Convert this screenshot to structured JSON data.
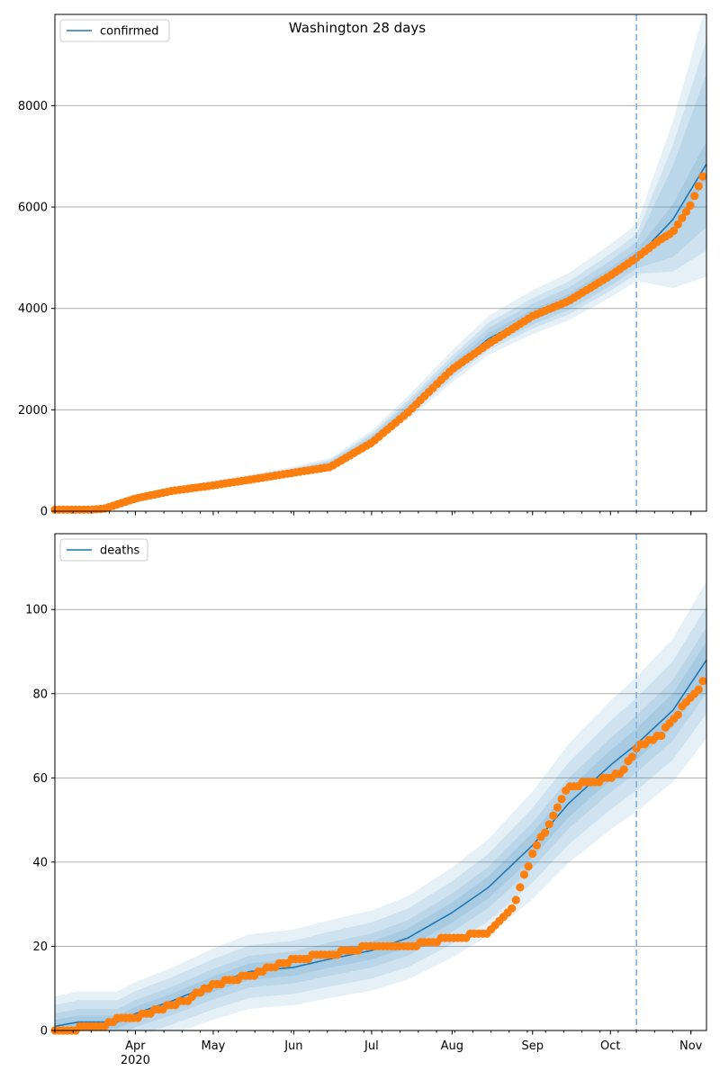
{
  "title": "Washington 28 days",
  "colors": {
    "model": "#1f77b4",
    "observed": "#ff7f0e",
    "band": "#1f77b4",
    "cutoff": "#7fb0dc",
    "grid": "#b0b0b0"
  },
  "x_axis": {
    "start": "2020-03-01",
    "end": "2020-11-07",
    "cutoff": "2020-10-11",
    "months": [
      {
        "label": "Apr",
        "date": "2020-04-01"
      },
      {
        "label": "May",
        "date": "2020-05-01"
      },
      {
        "label": "Jun",
        "date": "2020-06-01"
      },
      {
        "label": "Jul",
        "date": "2020-07-01"
      },
      {
        "label": "Aug",
        "date": "2020-08-01"
      },
      {
        "label": "Sep",
        "date": "2020-09-01"
      },
      {
        "label": "Oct",
        "date": "2020-10-01"
      },
      {
        "label": "Nov",
        "date": "2020-11-01"
      }
    ],
    "year_label": "2020"
  },
  "chart_data": [
    {
      "type": "line",
      "legend": "confirmed",
      "legend_position": "top-left",
      "ylim": [
        0,
        9800
      ],
      "yticks": [
        0,
        2000,
        4000,
        6000,
        8000
      ],
      "ytick_labels": [
        "0",
        "2000",
        "4000",
        "6000",
        "8000"
      ],
      "grid": "horizontal",
      "model_x": [
        "2020-03-01",
        "2020-03-15",
        "2020-04-01",
        "2020-04-15",
        "2020-05-01",
        "2020-05-15",
        "2020-06-01",
        "2020-06-15",
        "2020-07-01",
        "2020-07-15",
        "2020-08-01",
        "2020-08-15",
        "2020-09-01",
        "2020-09-15",
        "2020-10-01",
        "2020-10-11",
        "2020-10-25",
        "2020-11-07"
      ],
      "model_y": [
        0,
        10,
        250,
        400,
        520,
        630,
        770,
        920,
        1400,
        2000,
        2800,
        3400,
        3850,
        4150,
        4650,
        5000,
        5750,
        6850
      ],
      "band_widths": [
        [
          0.06,
          0.08
        ],
        [
          0.12,
          0.45
        ],
        [
          0.18,
          0.6
        ],
        [
          0.26,
          0.75
        ]
      ],
      "observed_x": [
        "2020-03-01",
        "2020-03-15",
        "2020-03-20",
        "2020-04-01",
        "2020-04-15",
        "2020-05-01",
        "2020-05-15",
        "2020-06-01",
        "2020-06-15",
        "2020-07-01",
        "2020-07-15",
        "2020-08-01",
        "2020-08-15",
        "2020-09-01",
        "2020-09-15",
        "2020-10-01",
        "2020-10-11",
        "2020-10-20",
        "2020-10-25",
        "2020-11-01",
        "2020-11-06"
      ],
      "observed_y": [
        30,
        30,
        50,
        250,
        400,
        510,
        620,
        760,
        870,
        1350,
        1950,
        2800,
        3300,
        3850,
        4150,
        4650,
        5000,
        5350,
        5500,
        6050,
        6650
      ]
    },
    {
      "type": "line",
      "legend": "deaths",
      "legend_position": "top-left",
      "ylim": [
        0,
        118
      ],
      "yticks": [
        0,
        20,
        40,
        60,
        80,
        100
      ],
      "ytick_labels": [
        "0",
        "20",
        "40",
        "60",
        "80",
        "100"
      ],
      "grid": "horizontal",
      "model_x": [
        "2020-03-01",
        "2020-03-10",
        "2020-03-25",
        "2020-04-01",
        "2020-04-15",
        "2020-05-01",
        "2020-05-15",
        "2020-06-01",
        "2020-06-15",
        "2020-07-01",
        "2020-07-15",
        "2020-08-01",
        "2020-08-15",
        "2020-09-01",
        "2020-09-15",
        "2020-10-01",
        "2020-10-11",
        "2020-10-25",
        "2020-11-07"
      ],
      "model_y": [
        1,
        2,
        2,
        4,
        7,
        11,
        14,
        15,
        17,
        19,
        22,
        28,
        34,
        44,
        54,
        63,
        68,
        76,
        88
      ],
      "band_widths": [
        [
          1.5,
          0.06
        ],
        [
          3,
          0.1
        ],
        [
          5,
          0.16
        ],
        [
          7,
          0.24
        ]
      ],
      "observed_x": [
        "2020-03-01",
        "2020-03-20",
        "2020-03-25",
        "2020-04-01",
        "2020-04-10",
        "2020-04-20",
        "2020-05-01",
        "2020-05-15",
        "2020-06-01",
        "2020-06-15",
        "2020-07-01",
        "2020-07-15",
        "2020-08-01",
        "2020-08-15",
        "2020-08-20",
        "2020-08-25",
        "2020-09-01",
        "2020-09-10",
        "2020-09-15",
        "2020-10-01",
        "2020-10-05",
        "2020-10-11",
        "2020-10-20",
        "2020-10-25",
        "2020-11-01",
        "2020-11-06"
      ],
      "observed_y": [
        0,
        1,
        3,
        3,
        5,
        7,
        11,
        13,
        17,
        18,
        20,
        20,
        22,
        23,
        26,
        30,
        42,
        52,
        58,
        60,
        61,
        67,
        70,
        74,
        79,
        83
      ]
    }
  ]
}
